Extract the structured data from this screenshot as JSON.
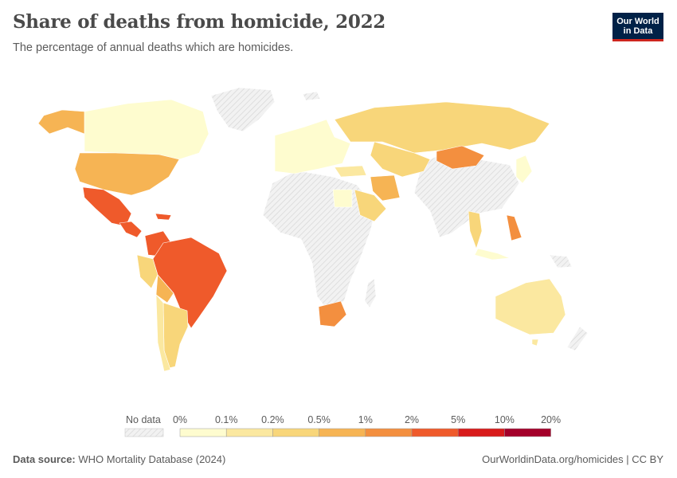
{
  "header": {
    "title": "Share of deaths from homicide, 2022",
    "subtitle": "The percentage of annual deaths which are homicides.",
    "logo_line1": "Our World",
    "logo_line2": "in Data"
  },
  "legend": {
    "no_data_label": "No data",
    "no_data_color": "#e9e9e9",
    "bins": [
      {
        "label": "0%",
        "color": "#fefccf"
      },
      {
        "label": "0.1%",
        "color": "#fbe8a0"
      },
      {
        "label": "0.2%",
        "color": "#f8d67a"
      },
      {
        "label": "0.5%",
        "color": "#f6b454"
      },
      {
        "label": "1%",
        "color": "#f38f3f"
      },
      {
        "label": "2%",
        "color": "#ef5a2b"
      },
      {
        "label": "5%",
        "color": "#d81b1b"
      },
      {
        "label": "10%",
        "color": "#a4002a"
      },
      {
        "label": "20%",
        "color": ""
      }
    ]
  },
  "footer": {
    "source_prefix": "Data source:",
    "source_text": " WHO Mortality Database (2024)",
    "right_text": "OurWorldinData.org/homicides | CC BY"
  }
}
